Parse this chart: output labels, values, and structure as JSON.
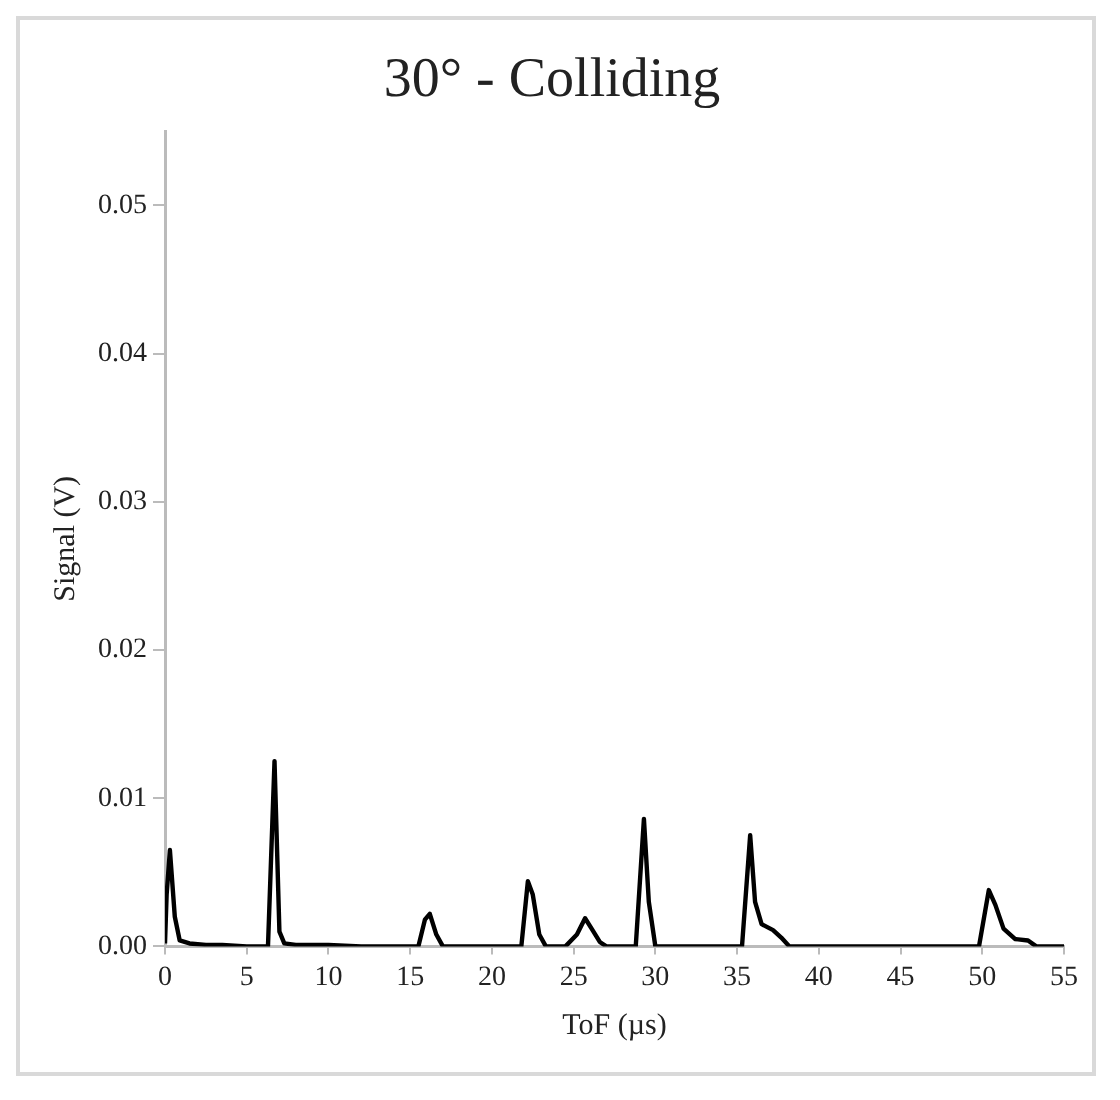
{
  "chart_data": {
    "type": "line",
    "title": "30° - Colliding",
    "xlabel": "ToF (µs)",
    "ylabel": "Signal (V)",
    "series": [
      {
        "color": "#000000",
        "x": [
          0,
          0.1,
          0.3,
          0.6,
          0.9,
          1.5,
          2.5,
          3.5,
          5,
          6.3,
          6.7,
          7.0,
          7.3,
          8,
          10,
          12,
          14,
          15.5,
          15.9,
          16.2,
          16.6,
          17,
          19,
          21,
          21.8,
          22.2,
          22.5,
          22.9,
          23.3,
          24.5,
          25.2,
          25.7,
          26.1,
          26.6,
          27,
          28.8,
          29.3,
          29.6,
          30,
          31,
          33,
          35.3,
          35.8,
          36.1,
          36.5,
          37.2,
          37.7,
          38.2,
          40,
          45,
          49.8,
          50.4,
          50.8,
          51.3,
          52,
          52.8,
          53.3,
          55
        ],
        "values": [
          0.0002,
          0.0035,
          0.0065,
          0.002,
          0.0004,
          0.0002,
          0.0001,
          0.0001,
          0,
          0,
          0.0125,
          0.001,
          0.0002,
          0.0001,
          0.0001,
          0,
          0,
          0,
          0.0018,
          0.0022,
          0.0008,
          0,
          0,
          0,
          0,
          0.0044,
          0.0035,
          0.0008,
          0,
          0,
          0.0008,
          0.0019,
          0.0012,
          0.0003,
          0,
          0,
          0.0086,
          0.003,
          0,
          0,
          0,
          0,
          0.0075,
          0.003,
          0.0015,
          0.0011,
          0.0006,
          0,
          0,
          0,
          0,
          0.0038,
          0.0028,
          0.0012,
          0.0005,
          0.0004,
          0,
          0
        ]
      }
    ],
    "xlim": [
      0,
      55
    ],
    "xticks": [
      0,
      5,
      10,
      15,
      20,
      25,
      30,
      35,
      40,
      45,
      50,
      55
    ],
    "ylim": [
      0,
      0.055
    ],
    "yticks": [
      {
        "value": 0,
        "label": "0.00"
      },
      0.01,
      0.02,
      0.03,
      0.04,
      0.05
    ],
    "marker": "none",
    "line_style": "solid",
    "legend": false
  }
}
